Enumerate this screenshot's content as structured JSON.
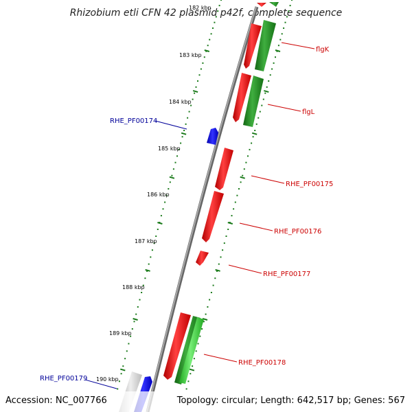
{
  "title": "Rhizobium etli CFN 42 plasmid p42f, complete sequence",
  "footer": {
    "accession": "Accession: NC_007766",
    "summary": "Topology: circular; Length: 642,517 bp; Genes: 567"
  },
  "ticks": [
    "182 kbp",
    "183 kbp",
    "184 kbp",
    "185 kbp",
    "186 kbp",
    "187 kbp",
    "188 kbp",
    "189 kbp",
    "190 kbp"
  ],
  "gene_labels": [
    {
      "text": "flgK",
      "color": "#cc0000"
    },
    {
      "text": "flgL",
      "color": "#cc0000"
    },
    {
      "text": "RHE_PF00174",
      "color": "#000099"
    },
    {
      "text": "RHE_PF00175",
      "color": "#cc0000"
    },
    {
      "text": "RHE_PF00176",
      "color": "#cc0000"
    },
    {
      "text": "RHE_PF00177",
      "color": "#cc0000"
    },
    {
      "text": "RHE_PF00178",
      "color": "#cc0000"
    },
    {
      "text": "RHE_PF00179",
      "color": "#000099"
    }
  ],
  "colors": {
    "backbone": "#8a8a8a",
    "forward_cds": "#ff0000",
    "reverse_cds": "#1a8a1a",
    "light_cds": "#33cc33",
    "other_feature": "#0000ff",
    "grey_feature": "#c8c8c8",
    "tick_dots": "#1a7a1a"
  }
}
